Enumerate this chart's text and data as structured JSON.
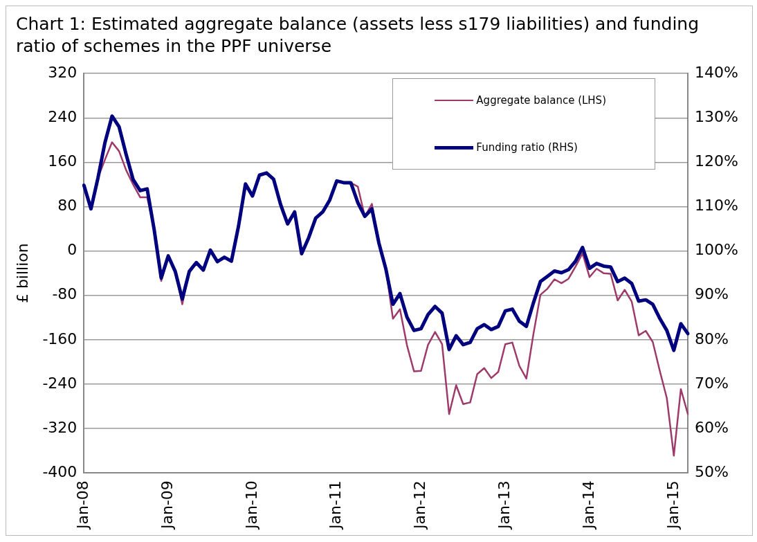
{
  "chart_data": {
    "type": "line",
    "title": "Chart 1: Estimated aggregate balance (assets less s179 liabilities) and funding ratio of schemes in the PPF universe",
    "ylabel": "£ billion",
    "categories": [
      "Jan-08",
      null,
      null,
      null,
      null,
      null,
      null,
      null,
      null,
      null,
      null,
      null,
      "Jan-09",
      null,
      null,
      null,
      null,
      null,
      null,
      null,
      null,
      null,
      null,
      null,
      "Jan-10",
      null,
      null,
      null,
      null,
      null,
      null,
      null,
      null,
      null,
      null,
      null,
      "Jan-11",
      null,
      null,
      null,
      null,
      null,
      null,
      null,
      null,
      null,
      null,
      null,
      "Jan-12",
      null,
      null,
      null,
      null,
      null,
      null,
      null,
      null,
      null,
      null,
      null,
      "Jan-13",
      null,
      null,
      null,
      null,
      null,
      null,
      null,
      null,
      null,
      null,
      null,
      "Jan-14",
      null,
      null,
      null,
      null,
      null,
      null,
      null,
      null,
      null,
      null,
      null,
      "Jan-15",
      null,
      null
    ],
    "series": [
      {
        "name": "Aggregate balance (LHS)",
        "color": "#9e3a6a",
        "values": [
          118,
          76,
          132,
          165,
          196,
          180,
          146,
          120,
          97,
          97,
          38,
          -54,
          -9,
          -37,
          -96,
          -37,
          -21,
          -34,
          2,
          -19,
          -11,
          -18,
          44,
          121,
          99,
          137,
          141,
          130,
          84,
          49,
          70,
          -5,
          24,
          59,
          70,
          92,
          126,
          123,
          123,
          116,
          62,
          85,
          14,
          -33,
          -122,
          -105,
          -170,
          -217,
          -216,
          -169,
          -146,
          -168,
          -294,
          -242,
          -276,
          -273,
          -222,
          -211,
          -229,
          -218,
          -168,
          -165,
          -207,
          -230,
          -150,
          -79,
          -68,
          -51,
          -58,
          -50,
          -28,
          -4,
          -47,
          -32,
          -40,
          -41,
          -89,
          -70,
          -91,
          -152,
          -144,
          -164,
          -216,
          -265,
          -369,
          -249,
          -294
        ]
      },
      {
        "name": "Funding ratio (RHS)",
        "color": "#00007f",
        "axis": "y2",
        "values": [
          114.8,
          109.5,
          116.5,
          124.5,
          130.4,
          128.0,
          121.8,
          116.1,
          113.6,
          114.0,
          104.8,
          93.9,
          98.9,
          95.4,
          89.2,
          95.4,
          97.4,
          95.7,
          100.2,
          97.6,
          98.6,
          97.7,
          105.5,
          115.1,
          112.4,
          117.1,
          117.6,
          116.2,
          110.5,
          106.1,
          108.8,
          99.4,
          103.0,
          107.4,
          108.8,
          111.5,
          115.8,
          115.4,
          115.4,
          110.9,
          107.8,
          109.5,
          101.8,
          95.9,
          88.0,
          90.4,
          85.1,
          82.1,
          82.5,
          85.7,
          87.5,
          86.0,
          77.8,
          80.9,
          78.9,
          79.4,
          82.5,
          83.4,
          82.3,
          83.0,
          86.5,
          86.9,
          84.2,
          83.0,
          88.3,
          93.1,
          94.3,
          95.5,
          95.1,
          95.8,
          97.7,
          100.8,
          96.1,
          97.2,
          96.6,
          96.4,
          93.1,
          93.9,
          92.7,
          88.7,
          89.0,
          88.0,
          84.8,
          82.1,
          77.6,
          83.6,
          81.4
        ]
      }
    ],
    "ylim": [
      -400,
      320
    ],
    "yticks": [
      -400,
      -320,
      -240,
      -160,
      -80,
      0,
      80,
      160,
      240,
      320
    ],
    "y2lim": [
      50,
      140
    ],
    "y2ticks": [
      {
        "value": 50,
        "label": "50%"
      },
      {
        "value": 60,
        "label": "60%"
      },
      {
        "value": 70,
        "label": "70%"
      },
      {
        "value": 80,
        "label": "80%"
      },
      {
        "value": 90,
        "label": "90%"
      },
      {
        "value": 100,
        "label": "100%"
      },
      {
        "value": 110,
        "label": "110%"
      },
      {
        "value": 120,
        "label": "120%"
      },
      {
        "value": 130,
        "label": "130%"
      },
      {
        "value": 140,
        "label": "140%"
      }
    ],
    "grid": "y",
    "legend": "top right",
    "marker": "none",
    "line_style": "solid"
  }
}
